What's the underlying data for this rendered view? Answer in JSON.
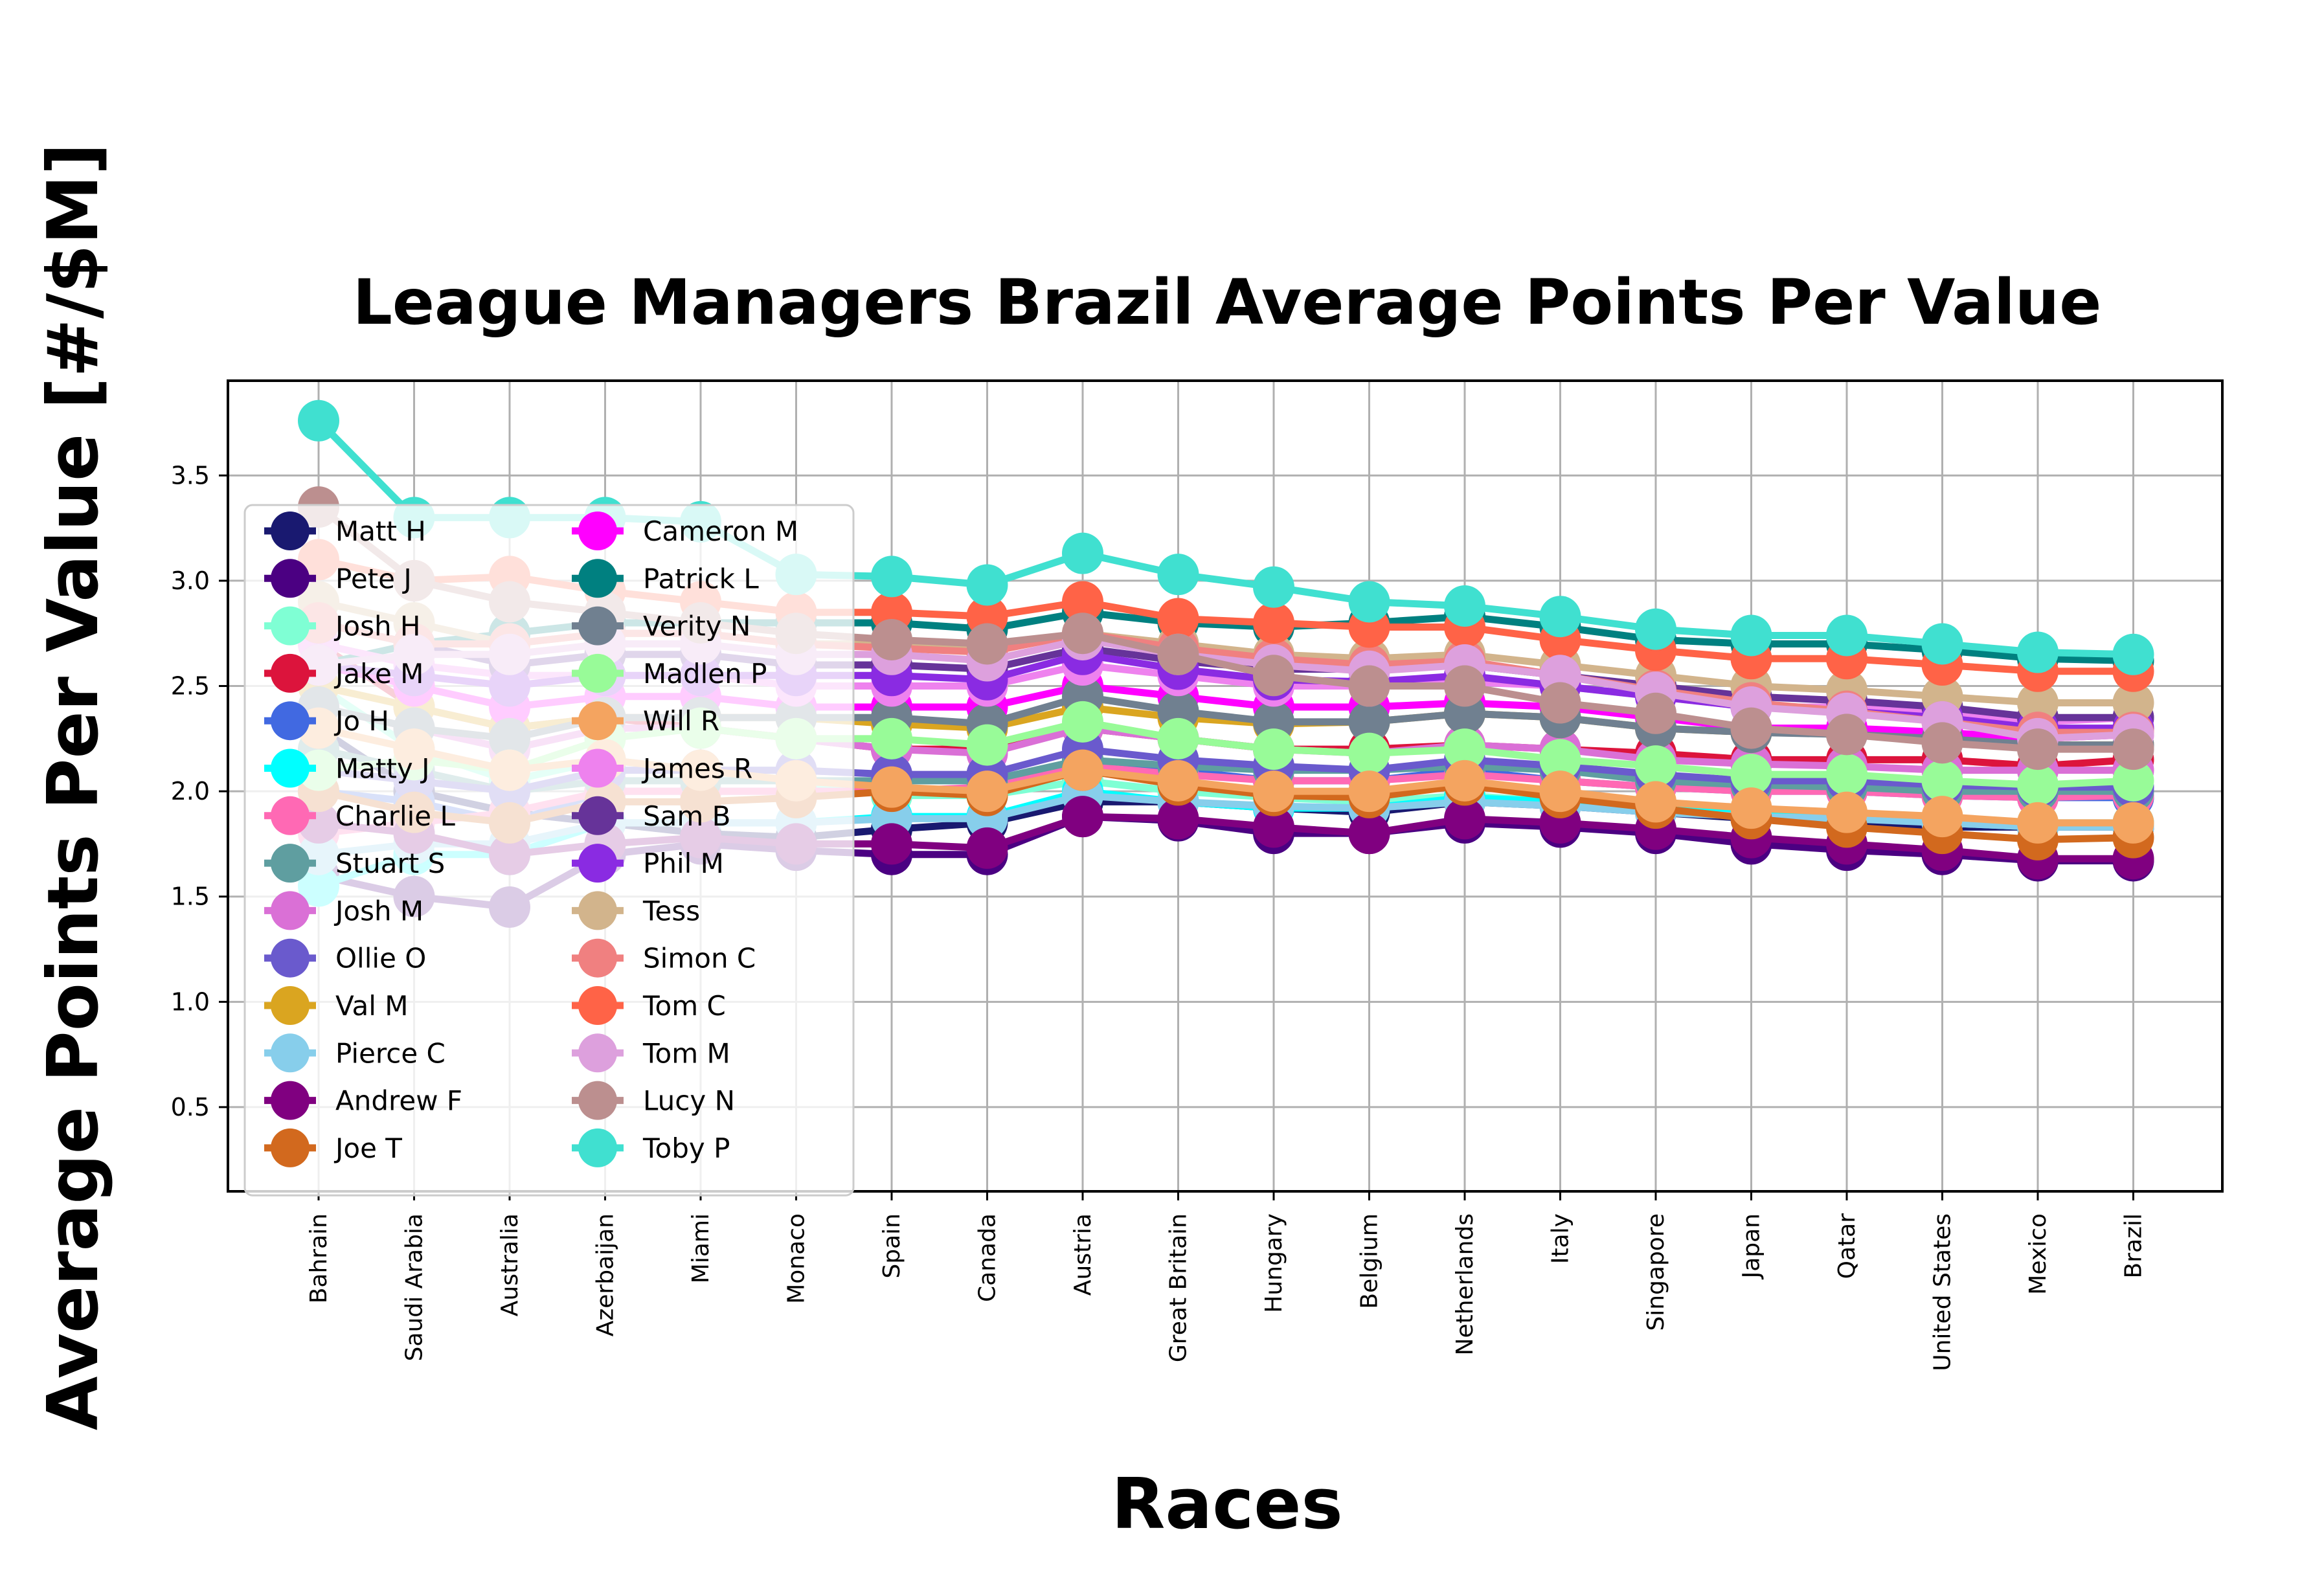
{
  "chart_data": {
    "type": "line",
    "title": "League Managers Brazil Average Points Per Value",
    "xlabel": "Races",
    "ylabel": "Average Points Per Value [#/$M]",
    "ylim": [
      0.1,
      3.95
    ],
    "yticks": [
      "0.5",
      "1.0",
      "1.5",
      "2.0",
      "2.5",
      "3.0",
      "3.5"
    ],
    "grid": true,
    "legend_position": "upper-left",
    "categories": [
      "Bahrain",
      "Saudi Arabia",
      "Australia",
      "Azerbaijan",
      "Miami",
      "Monaco",
      "Spain",
      "Canada",
      "Austria",
      "Great Britain",
      "Hungary",
      "Belgium",
      "Netherlands",
      "Italy",
      "Singapore",
      "Japan",
      "Qatar",
      "United States",
      "Mexico",
      "Brazil"
    ],
    "series": [
      {
        "name": "Matt H",
        "color": "#191970",
        "values": [
          2.3,
          2.0,
          1.9,
          1.85,
          1.8,
          1.78,
          1.82,
          1.85,
          1.95,
          1.95,
          1.92,
          1.9,
          1.95,
          1.93,
          1.9,
          1.87,
          1.85,
          1.83,
          1.83,
          1.83
        ]
      },
      {
        "name": "Pete J",
        "color": "#4b0082",
        "values": [
          1.6,
          1.5,
          1.45,
          1.7,
          1.75,
          1.72,
          1.7,
          1.7,
          1.88,
          1.86,
          1.8,
          1.8,
          1.85,
          1.83,
          1.8,
          1.75,
          1.72,
          1.7,
          1.67,
          1.67
        ]
      },
      {
        "name": "Josh H",
        "color": "#7fffd4",
        "values": [
          2.5,
          2.2,
          2.05,
          2.15,
          2.1,
          2.05,
          1.98,
          1.98,
          2.05,
          2.0,
          1.97,
          1.95,
          1.98,
          1.95,
          1.92,
          1.9,
          1.88,
          1.87,
          1.85,
          1.85
        ]
      },
      {
        "name": "Jake M",
        "color": "#dc143c",
        "values": [
          2.7,
          2.4,
          2.3,
          2.35,
          2.3,
          2.25,
          2.2,
          2.2,
          2.3,
          2.25,
          2.2,
          2.2,
          2.22,
          2.2,
          2.18,
          2.15,
          2.15,
          2.15,
          2.12,
          2.15
        ]
      },
      {
        "name": "Jo H",
        "color": "#4169e1",
        "values": [
          2.0,
          1.95,
          1.85,
          2.0,
          2.0,
          2.0,
          2.0,
          2.0,
          2.15,
          2.1,
          2.05,
          2.05,
          2.1,
          2.05,
          2.02,
          2.0,
          2.0,
          1.98,
          1.97,
          1.97
        ]
      },
      {
        "name": "Matty J",
        "color": "#00ffff",
        "values": [
          1.55,
          1.7,
          1.7,
          1.85,
          1.85,
          1.85,
          1.88,
          1.88,
          2.0,
          1.95,
          1.92,
          1.92,
          1.97,
          1.95,
          1.92,
          1.9,
          1.88,
          1.85,
          1.83,
          1.85
        ]
      },
      {
        "name": "Charlie L",
        "color": "#ff69b4",
        "values": [
          1.8,
          1.85,
          1.9,
          2.0,
          2.0,
          2.0,
          2.0,
          2.02,
          2.12,
          2.08,
          2.05,
          2.05,
          2.08,
          2.05,
          2.02,
          2.0,
          2.0,
          1.98,
          1.97,
          1.98
        ]
      },
      {
        "name": "Stuart S",
        "color": "#5f9ea0",
        "values": [
          2.2,
          2.1,
          2.0,
          2.05,
          2.05,
          2.05,
          2.05,
          2.05,
          2.15,
          2.12,
          2.1,
          2.1,
          2.12,
          2.1,
          2.05,
          2.03,
          2.02,
          2.0,
          2.0,
          2.0
        ]
      },
      {
        "name": "Josh M",
        "color": "#da70d6",
        "values": [
          2.4,
          2.3,
          2.2,
          2.3,
          2.3,
          2.25,
          2.2,
          2.18,
          2.3,
          2.25,
          2.2,
          2.18,
          2.22,
          2.2,
          2.15,
          2.13,
          2.12,
          2.1,
          2.1,
          2.1
        ]
      },
      {
        "name": "Ollie O",
        "color": "#6a5acd",
        "values": [
          2.1,
          2.05,
          2.0,
          2.1,
          2.1,
          2.1,
          2.08,
          2.08,
          2.2,
          2.15,
          2.12,
          2.1,
          2.15,
          2.12,
          2.08,
          2.05,
          2.05,
          2.03,
          2.02,
          2.02
        ]
      },
      {
        "name": "Val M",
        "color": "#daa520",
        "values": [
          2.5,
          2.4,
          2.3,
          2.35,
          2.35,
          2.35,
          2.32,
          2.3,
          2.4,
          2.35,
          2.32,
          2.33,
          2.37,
          2.35,
          2.3,
          2.28,
          2.28,
          2.25,
          2.22,
          2.22
        ]
      },
      {
        "name": "Pierce C",
        "color": "#87ceeb",
        "values": [
          1.7,
          1.75,
          1.75,
          1.85,
          1.85,
          1.85,
          1.87,
          1.87,
          1.98,
          1.95,
          1.93,
          1.92,
          1.95,
          1.93,
          1.9,
          1.88,
          1.87,
          1.85,
          1.83,
          1.83
        ]
      },
      {
        "name": "Andrew F",
        "color": "#800080",
        "values": [
          1.85,
          1.8,
          1.7,
          1.75,
          1.78,
          1.75,
          1.75,
          1.73,
          1.88,
          1.87,
          1.83,
          1.8,
          1.87,
          1.85,
          1.82,
          1.78,
          1.75,
          1.72,
          1.68,
          1.68
        ]
      },
      {
        "name": "Joe T",
        "color": "#d2691e",
        "values": [
          2.0,
          1.9,
          1.85,
          1.95,
          1.95,
          1.97,
          2.0,
          1.98,
          2.1,
          2.03,
          1.98,
          1.97,
          2.03,
          1.97,
          1.92,
          1.87,
          1.83,
          1.8,
          1.77,
          1.78
        ]
      },
      {
        "name": "Cameron M",
        "color": "#ff00ff",
        "values": [
          2.6,
          2.5,
          2.4,
          2.45,
          2.45,
          2.4,
          2.4,
          2.4,
          2.5,
          2.45,
          2.4,
          2.4,
          2.42,
          2.4,
          2.35,
          2.3,
          2.3,
          2.28,
          2.25,
          2.27
        ]
      },
      {
        "name": "Patrick L",
        "color": "#008080",
        "values": [
          2.6,
          2.7,
          2.75,
          2.8,
          2.8,
          2.8,
          2.8,
          2.77,
          2.85,
          2.8,
          2.78,
          2.8,
          2.83,
          2.78,
          2.72,
          2.7,
          2.7,
          2.67,
          2.63,
          2.62
        ]
      },
      {
        "name": "Verity N",
        "color": "#708090",
        "values": [
          2.4,
          2.3,
          2.25,
          2.35,
          2.35,
          2.35,
          2.35,
          2.32,
          2.45,
          2.38,
          2.33,
          2.33,
          2.37,
          2.35,
          2.3,
          2.28,
          2.27,
          2.25,
          2.22,
          2.22
        ]
      },
      {
        "name": "Madlen P",
        "color": "#98fb98",
        "values": [
          2.1,
          2.15,
          2.1,
          2.25,
          2.3,
          2.25,
          2.25,
          2.22,
          2.33,
          2.25,
          2.2,
          2.18,
          2.2,
          2.15,
          2.12,
          2.08,
          2.08,
          2.05,
          2.03,
          2.05
        ]
      },
      {
        "name": "Will R",
        "color": "#f4a460",
        "values": [
          2.3,
          2.2,
          2.1,
          2.15,
          2.1,
          2.05,
          2.02,
          2.0,
          2.1,
          2.05,
          2.0,
          2.0,
          2.05,
          2.0,
          1.95,
          1.92,
          1.9,
          1.88,
          1.85,
          1.85
        ]
      },
      {
        "name": "James R",
        "color": "#ee82ee",
        "values": [
          2.7,
          2.6,
          2.55,
          2.55,
          2.55,
          2.5,
          2.5,
          2.5,
          2.6,
          2.55,
          2.5,
          2.5,
          2.52,
          2.5,
          2.45,
          2.4,
          2.4,
          2.37,
          2.33,
          2.35
        ]
      },
      {
        "name": "Sam B",
        "color": "#663399",
        "values": [
          2.8,
          2.7,
          2.6,
          2.65,
          2.65,
          2.6,
          2.6,
          2.58,
          2.68,
          2.62,
          2.58,
          2.58,
          2.6,
          2.55,
          2.5,
          2.45,
          2.43,
          2.4,
          2.35,
          2.35
        ]
      },
      {
        "name": "Phil M",
        "color": "#8a2be2",
        "values": [
          2.6,
          2.55,
          2.5,
          2.55,
          2.55,
          2.55,
          2.55,
          2.53,
          2.65,
          2.58,
          2.53,
          2.52,
          2.55,
          2.5,
          2.45,
          2.4,
          2.38,
          2.35,
          2.3,
          2.3
        ]
      },
      {
        "name": "Tess",
        "color": "#d2b48c",
        "values": [
          2.9,
          2.8,
          2.7,
          2.75,
          2.75,
          2.7,
          2.7,
          2.68,
          2.75,
          2.7,
          2.65,
          2.63,
          2.65,
          2.6,
          2.55,
          2.5,
          2.48,
          2.45,
          2.42,
          2.42
        ]
      },
      {
        "name": "Simon C",
        "color": "#f08080",
        "values": [
          2.8,
          2.7,
          2.7,
          2.75,
          2.75,
          2.7,
          2.68,
          2.66,
          2.75,
          2.68,
          2.63,
          2.6,
          2.62,
          2.55,
          2.48,
          2.42,
          2.38,
          2.33,
          2.28,
          2.28
        ]
      },
      {
        "name": "Tom C",
        "color": "#ff6347",
        "values": [
          3.1,
          3.0,
          3.02,
          2.95,
          2.9,
          2.85,
          2.85,
          2.83,
          2.9,
          2.82,
          2.8,
          2.78,
          2.78,
          2.72,
          2.67,
          2.63,
          2.63,
          2.6,
          2.57,
          2.57
        ]
      },
      {
        "name": "Tom M",
        "color": "#dda0dd",
        "values": [
          2.6,
          2.65,
          2.65,
          2.7,
          2.7,
          2.65,
          2.65,
          2.62,
          2.72,
          2.65,
          2.6,
          2.57,
          2.6,
          2.55,
          2.47,
          2.4,
          2.37,
          2.33,
          2.25,
          2.27
        ]
      },
      {
        "name": "Lucy N",
        "color": "#bc8f8f",
        "values": [
          3.35,
          3.0,
          2.9,
          2.85,
          2.8,
          2.75,
          2.72,
          2.7,
          2.75,
          2.65,
          2.55,
          2.5,
          2.5,
          2.42,
          2.37,
          2.3,
          2.27,
          2.23,
          2.2,
          2.2
        ]
      },
      {
        "name": "Toby P",
        "color": "#40e0d0",
        "values": [
          3.76,
          3.3,
          3.3,
          3.3,
          3.28,
          3.03,
          3.02,
          2.98,
          3.13,
          3.03,
          2.97,
          2.9,
          2.88,
          2.83,
          2.77,
          2.74,
          2.74,
          2.7,
          2.66,
          2.65
        ]
      }
    ]
  }
}
